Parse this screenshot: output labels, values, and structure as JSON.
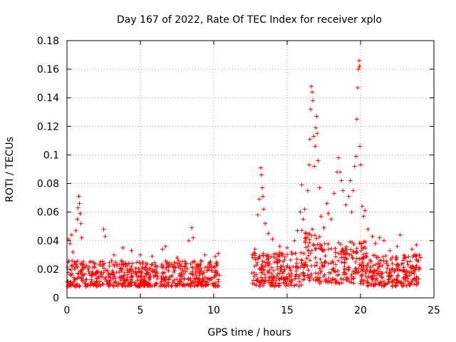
{
  "chart_data": {
    "type": "scatter",
    "title": "Day 167 of 2022, Rate Of TEC Index for receiver xplo",
    "xlabel": "GPS time / hours",
    "ylabel": "ROTI / TECUs",
    "xlim": [
      0,
      25
    ],
    "ylim": [
      0,
      0.18
    ],
    "xticks": [
      0,
      5,
      10,
      15,
      20,
      25
    ],
    "yticks": [
      0,
      0.02,
      0.04,
      0.06,
      0.08,
      0.1,
      0.12,
      0.14,
      0.16,
      0.18
    ],
    "xtick_labels": [
      "0",
      "5",
      "10",
      "15",
      "20",
      "25"
    ],
    "ytick_labels": [
      "0",
      "0.02",
      "0.04",
      "0.06",
      "0.08",
      "0.1",
      "0.12",
      "0.14",
      "0.16",
      "0.18"
    ],
    "grid": true,
    "marker": "+",
    "color": "#ff0000",
    "series": [
      {
        "name": "ROTI",
        "points": [
          [
            0.1,
            0.041
          ],
          [
            0.2,
            0.038
          ],
          [
            0.3,
            0.044
          ],
          [
            0.4,
            0.032
          ],
          [
            0.6,
            0.047
          ],
          [
            0.7,
            0.055
          ],
          [
            0.75,
            0.063
          ],
          [
            0.8,
            0.071
          ],
          [
            0.85,
            0.066
          ],
          [
            0.9,
            0.059
          ],
          [
            0.95,
            0.052
          ],
          [
            1.0,
            0.042
          ],
          [
            2.5,
            0.048
          ],
          [
            2.6,
            0.043
          ],
          [
            3.2,
            0.03
          ],
          [
            3.8,
            0.035
          ],
          [
            4.4,
            0.033
          ],
          [
            5.0,
            0.03
          ],
          [
            5.8,
            0.029
          ],
          [
            6.5,
            0.034
          ],
          [
            6.7,
            0.036
          ],
          [
            7.5,
            0.028
          ],
          [
            8.3,
            0.04
          ],
          [
            8.5,
            0.049
          ],
          [
            8.6,
            0.042
          ],
          [
            9.4,
            0.03
          ],
          [
            10.1,
            0.029
          ],
          [
            10.3,
            0.031
          ],
          [
            12.8,
            0.034
          ],
          [
            13.0,
            0.058
          ],
          [
            13.1,
            0.069
          ],
          [
            13.2,
            0.091
          ],
          [
            13.25,
            0.086
          ],
          [
            13.3,
            0.077
          ],
          [
            13.35,
            0.071
          ],
          [
            13.4,
            0.062
          ],
          [
            13.5,
            0.052
          ],
          [
            13.7,
            0.045
          ],
          [
            14.0,
            0.041
          ],
          [
            14.5,
            0.036
          ],
          [
            15.0,
            0.035
          ],
          [
            15.3,
            0.032
          ],
          [
            15.5,
            0.04
          ],
          [
            15.7,
            0.047
          ],
          [
            15.9,
            0.06
          ],
          [
            16.0,
            0.079
          ],
          [
            16.1,
            0.055
          ],
          [
            16.2,
            0.062
          ],
          [
            16.4,
            0.075
          ],
          [
            16.5,
            0.093
          ],
          [
            16.55,
            0.111
          ],
          [
            16.6,
            0.132
          ],
          [
            16.65,
            0.148
          ],
          [
            16.7,
            0.144
          ],
          [
            16.75,
            0.138
          ],
          [
            16.8,
            0.113
          ],
          [
            16.85,
            0.092
          ],
          [
            16.9,
            0.106
          ],
          [
            16.95,
            0.119
          ],
          [
            17.0,
            0.127
          ],
          [
            17.05,
            0.115
          ],
          [
            17.1,
            0.096
          ],
          [
            17.2,
            0.077
          ],
          [
            17.3,
            0.057
          ],
          [
            17.5,
            0.049
          ],
          [
            17.7,
            0.066
          ],
          [
            17.8,
            0.059
          ],
          [
            18.0,
            0.055
          ],
          [
            18.2,
            0.073
          ],
          [
            18.4,
            0.088
          ],
          [
            18.5,
            0.098
          ],
          [
            18.6,
            0.088
          ],
          [
            18.7,
            0.082
          ],
          [
            18.8,
            0.075
          ],
          [
            19.0,
            0.065
          ],
          [
            19.2,
            0.071
          ],
          [
            19.3,
            0.082
          ],
          [
            19.4,
            0.06
          ],
          [
            19.5,
            0.075
          ],
          [
            19.6,
            0.092
          ],
          [
            19.7,
            0.099
          ],
          [
            19.75,
            0.125
          ],
          [
            19.8,
            0.147
          ],
          [
            19.85,
            0.16
          ],
          [
            19.9,
            0.166
          ],
          [
            19.93,
            0.162
          ],
          [
            19.96,
            0.106
          ],
          [
            20.0,
            0.093
          ],
          [
            20.1,
            0.064
          ],
          [
            20.2,
            0.057
          ],
          [
            20.3,
            0.061
          ],
          [
            20.5,
            0.048
          ],
          [
            20.8,
            0.043
          ],
          [
            21.0,
            0.038
          ],
          [
            21.3,
            0.042
          ],
          [
            21.6,
            0.04
          ],
          [
            22.0,
            0.033
          ],
          [
            22.5,
            0.036
          ],
          [
            22.7,
            0.044
          ],
          [
            23.0,
            0.029
          ],
          [
            23.5,
            0.034
          ],
          [
            23.8,
            0.037
          ],
          [
            24.0,
            0.03
          ]
        ],
        "bands": [
          [
            0.0,
            10.4,
            0.008,
            0.026
          ],
          [
            12.6,
            16.0,
            0.008,
            0.032
          ],
          [
            16.0,
            17.2,
            0.012,
            0.048
          ],
          [
            17.2,
            20.4,
            0.01,
            0.04
          ],
          [
            20.4,
            24.1,
            0.008,
            0.03
          ]
        ]
      }
    ]
  }
}
